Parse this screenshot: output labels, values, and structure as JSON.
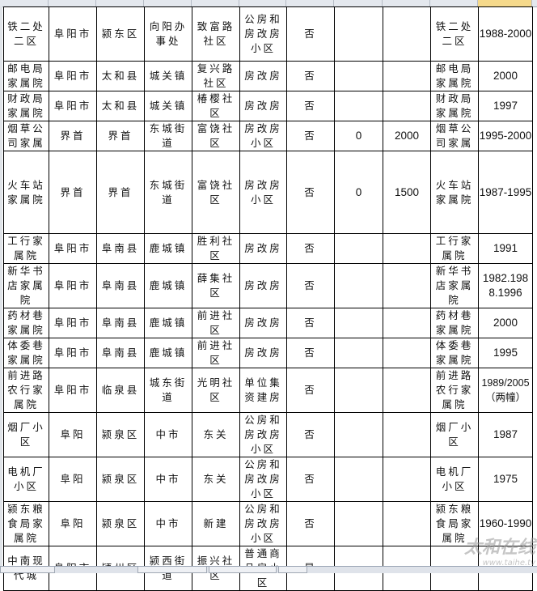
{
  "sheet": {
    "selected_column_index": 10,
    "rows": [
      [
        "铁二处二区",
        "阜阳市",
        "颍东区",
        "向阳办事处",
        "致富路社区",
        "公房和房改房小区",
        "否",
        "",
        "",
        "铁二处二区",
        "1988-2000"
      ],
      [
        "邮电局家属院",
        "阜阳市",
        "太和县",
        "城关镇",
        "复兴路社区",
        "房改房",
        "否",
        "",
        "",
        "邮电局家属院",
        "2000"
      ],
      [
        "财政局家属院",
        "阜阳市",
        "太和县",
        "城关镇",
        "椿樱社区",
        "房改房",
        "否",
        "",
        "",
        "财政局家属院",
        "1997"
      ],
      [
        "烟草公司家属",
        "界首",
        "界首",
        "东城街道",
        "富饶社区",
        "房改房小区",
        "否",
        "0",
        "2000",
        "烟草公司家属",
        "1995-2000"
      ],
      [
        "火车站家属院",
        "界首",
        "界首",
        "东城街道",
        "富饶社区",
        "房改房小区",
        "否",
        "0",
        "1500",
        "火车站家属院",
        "1987-1995"
      ],
      [
        "工行家属院",
        "阜阳市",
        "阜南县",
        "鹿城镇",
        "胜利社区",
        "房改房",
        "否",
        "",
        "",
        "工行家属院",
        "1991"
      ],
      [
        "新华书店家属院",
        "阜阳市",
        "阜南县",
        "鹿城镇",
        "薛集社区",
        "房改房",
        "否",
        "",
        "",
        "新华书店家属院",
        "1982.1988.1996"
      ],
      [
        "药材巷家属院",
        "阜阳市",
        "阜南县",
        "鹿城镇",
        "前进社区",
        "房改房",
        "否",
        "",
        "",
        "药材巷家属院",
        "2000"
      ],
      [
        "体委巷家属院",
        "阜阳市",
        "阜南县",
        "鹿城镇",
        "前进社区",
        "房改房",
        "否",
        "",
        "",
        "体委巷家属院",
        "1995"
      ],
      [
        "前进路农行家属院",
        "阜阳市",
        "临泉县",
        "城东街道",
        "光明社区",
        "单位集资建房",
        "否",
        "",
        "",
        "前进路农行家属院",
        "1989/2005（两幢）"
      ],
      [
        "烟厂小区",
        "阜阳",
        "颍泉区",
        "中市",
        "东关",
        "公房和房改房小区",
        "否",
        "",
        "",
        "烟厂小区",
        "1987"
      ],
      [
        "电机厂小区",
        "阜阳",
        "颍泉区",
        "中市",
        "东关",
        "公房和房改房小区",
        "否",
        "",
        "",
        "电机厂小区",
        "1975"
      ],
      [
        "颍东粮食局家属院",
        "阜阳",
        "颍泉区",
        "中市",
        "新建",
        "公房和房改房小区",
        "否",
        "",
        "",
        "颍东粮食局家属院",
        "1960-1990"
      ],
      [
        "中南现代城",
        "阜阳市",
        "颍州区",
        "颍西街道",
        "振兴社区",
        "普通商品房小区",
        "是",
        "",
        "",
        "",
        ""
      ]
    ]
  },
  "watermark": {
    "logo": "太和在线",
    "url": "www.taihe.tv"
  }
}
